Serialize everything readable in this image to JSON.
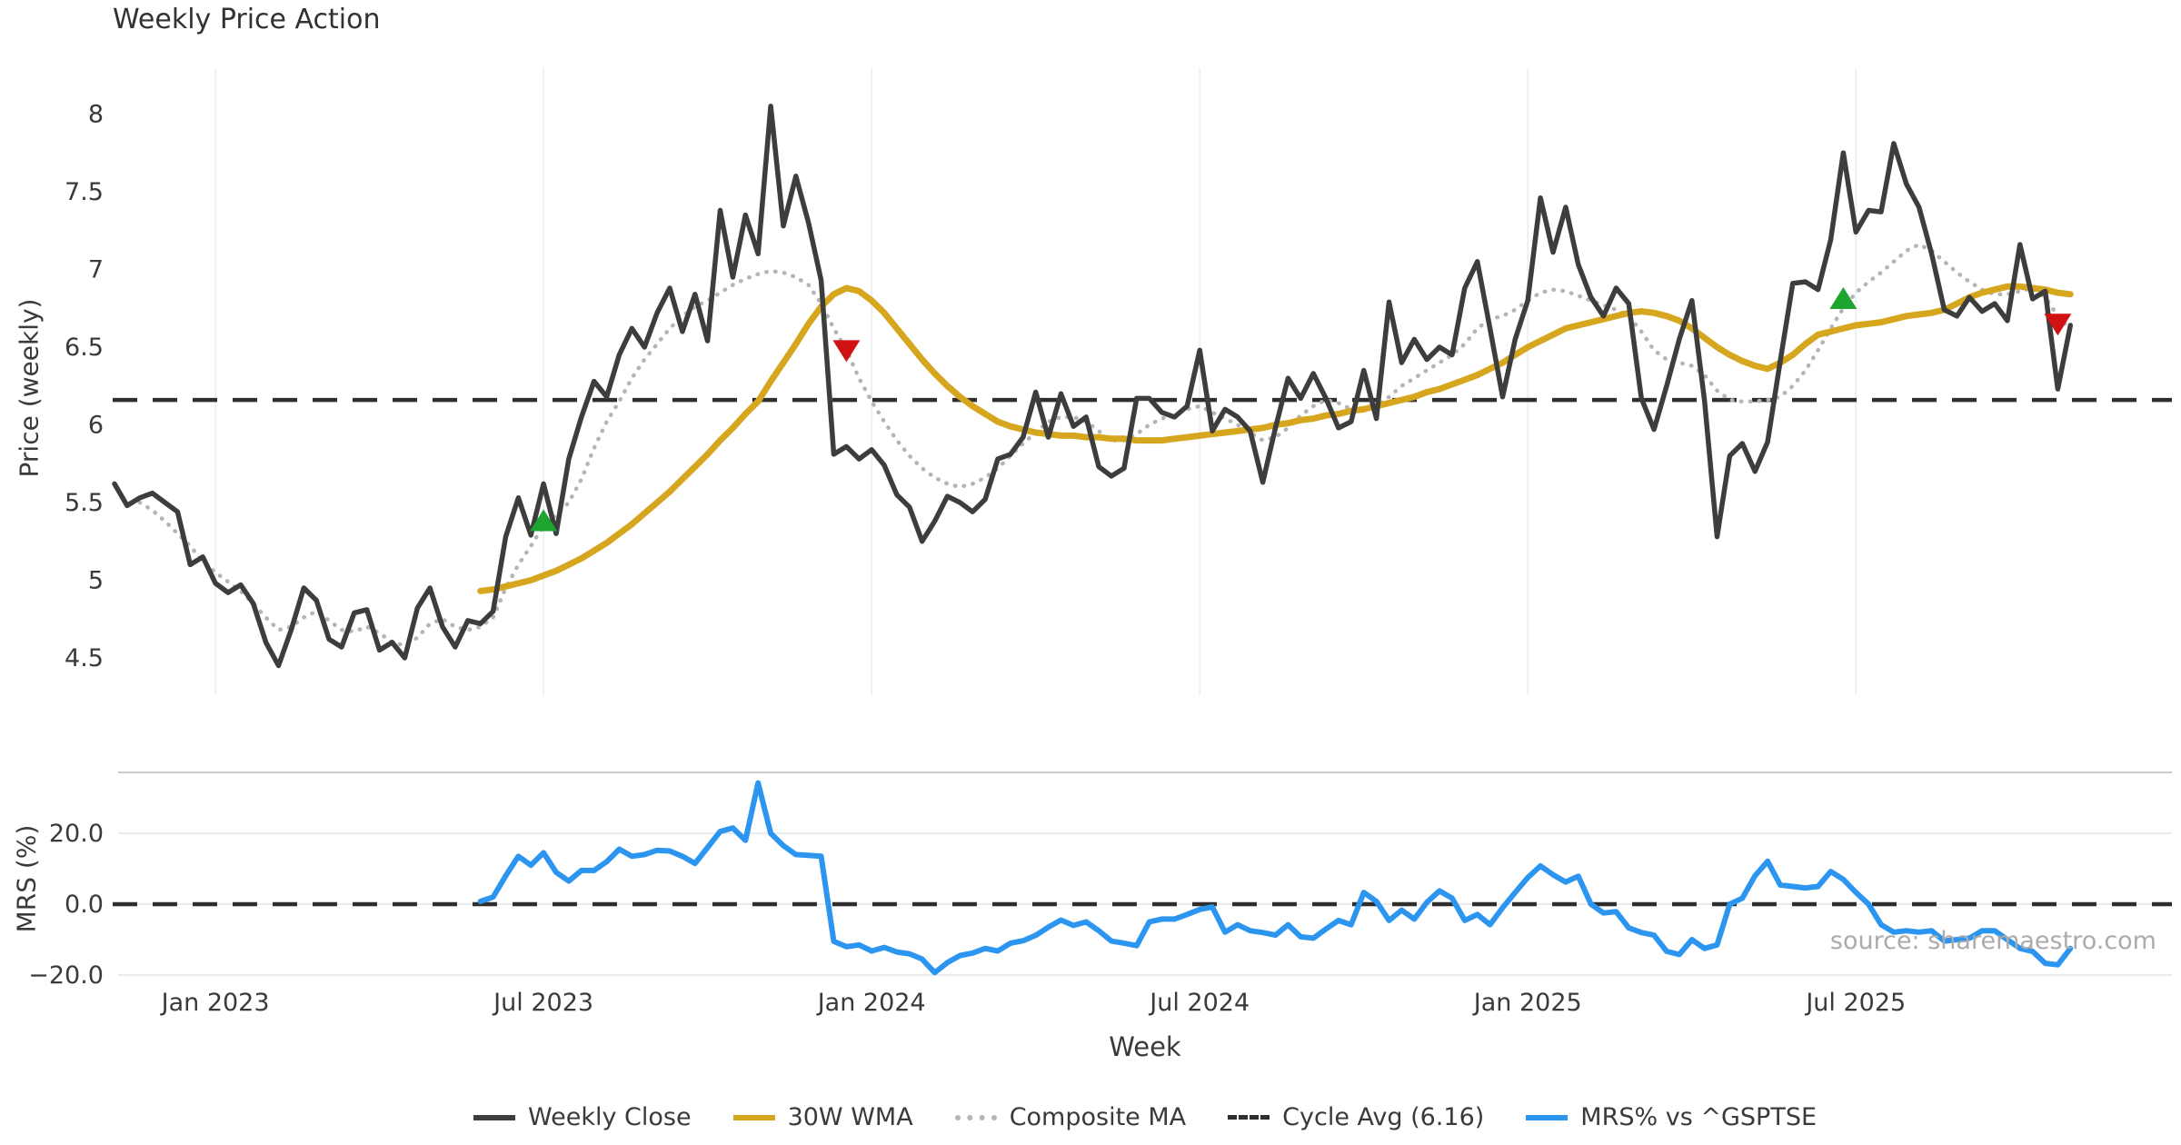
{
  "title": "Weekly Price Action",
  "source_note": "source: sharemaestro.com",
  "axis_labels": {
    "price": "Price (weekly)",
    "mrs": "MRS (%)",
    "x": "Week"
  },
  "legend": {
    "items": [
      {
        "label": "Weekly Close",
        "color": "#3d3d3d",
        "style": "solid"
      },
      {
        "label": "30W WMA",
        "color": "#d7a61f",
        "style": "solid"
      },
      {
        "label": "Composite MA",
        "color": "#b5b5b5",
        "style": "dotted"
      },
      {
        "label": "Cycle Avg (6.16)",
        "color": "#2e2e2e",
        "style": "dashed"
      },
      {
        "label": "MRS% vs ^GSPTSE",
        "color": "#2b95f0",
        "style": "solid"
      }
    ]
  },
  "colors": {
    "weekly_close": "#3d3d3d",
    "wma30": "#d7a61f",
    "composite_ma": "#b5b5b5",
    "cycle_avg": "#2e2e2e",
    "mrs": "#2b95f0",
    "buy_marker": "#1da52f",
    "sell_marker": "#d01215",
    "gridline": "#eef0f4",
    "mrs_gridline": "#e9ebf1",
    "panel_border": "#c9ccd2",
    "tick_text": "#3a3a3a",
    "source_text": "#ababab"
  },
  "chart_data": [
    {
      "panel": "price",
      "type": "line",
      "title": "Weekly Price Action",
      "ylabel": "Price (weekly)",
      "ylim": [
        4.26,
        8.3
      ],
      "yticks": [
        4.5,
        5,
        5.5,
        6,
        6.5,
        7,
        7.5,
        8
      ],
      "grid": "vertical-only",
      "x_unit": "week",
      "x_start_date": "2022-11-07",
      "x_total_weeks": 156,
      "x_ticks": [
        {
          "week": 8,
          "label": "Jan 2023"
        },
        {
          "week": 34,
          "label": "Jul 2023"
        },
        {
          "week": 60,
          "label": "Jan 2024"
        },
        {
          "week": 86,
          "label": "Jul 2024"
        },
        {
          "week": 112,
          "label": "Jan 2025"
        },
        {
          "week": 138,
          "label": "Jul 2025"
        }
      ],
      "cycle_avg": 6.16,
      "series": [
        {
          "name": "Weekly Close",
          "color": "#3d3d3d",
          "style": "solid",
          "width": 5.5,
          "start_week": 0,
          "values": [
            5.62,
            5.48,
            5.53,
            5.56,
            5.5,
            5.44,
            5.1,
            5.15,
            4.98,
            4.92,
            4.97,
            4.85,
            4.6,
            4.45,
            4.68,
            4.95,
            4.87,
            4.62,
            4.57,
            4.79,
            4.81,
            4.55,
            4.6,
            4.5,
            4.82,
            4.95,
            4.7,
            4.57,
            4.74,
            4.72,
            4.8,
            5.28,
            5.53,
            5.29,
            5.62,
            5.3,
            5.78,
            6.05,
            6.28,
            6.18,
            6.45,
            6.62,
            6.5,
            6.72,
            6.88,
            6.6,
            6.84,
            6.54,
            7.38,
            6.95,
            7.35,
            7.1,
            8.05,
            7.28,
            7.6,
            7.3,
            6.93,
            5.81,
            5.86,
            5.78,
            5.84,
            5.74,
            5.55,
            5.47,
            5.25,
            5.38,
            5.54,
            5.5,
            5.44,
            5.52,
            5.78,
            5.81,
            5.92,
            6.21,
            5.92,
            6.2,
            5.99,
            6.05,
            5.73,
            5.67,
            5.72,
            6.17,
            6.17,
            6.08,
            6.05,
            6.12,
            6.48,
            5.96,
            6.1,
            6.05,
            5.96,
            5.63,
            5.98,
            6.3,
            6.17,
            6.33,
            6.17,
            5.98,
            6.02,
            6.35,
            6.04,
            6.79,
            6.4,
            6.55,
            6.42,
            6.5,
            6.45,
            6.88,
            7.05,
            6.62,
            6.18,
            6.55,
            6.8,
            7.46,
            7.11,
            7.4,
            7.03,
            6.82,
            6.7,
            6.88,
            6.78,
            6.17,
            5.97,
            6.25,
            6.55,
            6.8,
            6.16,
            5.28,
            5.8,
            5.88,
            5.7,
            5.89,
            6.41,
            6.91,
            6.92,
            6.87,
            7.19,
            7.75,
            7.24,
            7.38,
            7.37,
            7.81,
            7.55,
            7.4,
            7.1,
            6.74,
            6.7,
            6.82,
            6.73,
            6.78,
            6.67,
            7.16,
            6.81,
            6.86,
            6.23,
            6.64
          ]
        },
        {
          "name": "30W WMA",
          "color": "#d7a61f",
          "style": "solid",
          "width": 7,
          "start_week": 29,
          "values": [
            4.93,
            4.94,
            4.96,
            4.98,
            5.0,
            5.03,
            5.06,
            5.1,
            5.14,
            5.19,
            5.24,
            5.3,
            5.36,
            5.43,
            5.5,
            5.57,
            5.65,
            5.73,
            5.81,
            5.9,
            5.98,
            6.07,
            6.15,
            6.28,
            6.4,
            6.52,
            6.65,
            6.76,
            6.84,
            6.88,
            6.86,
            6.8,
            6.72,
            6.62,
            6.52,
            6.42,
            6.33,
            6.25,
            6.18,
            6.12,
            6.07,
            6.02,
            5.99,
            5.97,
            5.95,
            5.94,
            5.93,
            5.93,
            5.92,
            5.92,
            5.91,
            5.91,
            5.9,
            5.9,
            5.9,
            5.91,
            5.92,
            5.93,
            5.94,
            5.95,
            5.96,
            5.97,
            5.98,
            6.0,
            6.01,
            6.03,
            6.04,
            6.06,
            6.07,
            6.09,
            6.1,
            6.12,
            6.14,
            6.16,
            6.18,
            6.21,
            6.23,
            6.26,
            6.29,
            6.32,
            6.36,
            6.4,
            6.45,
            6.5,
            6.54,
            6.58,
            6.62,
            6.64,
            6.66,
            6.68,
            6.7,
            6.72,
            6.73,
            6.72,
            6.7,
            6.67,
            6.62,
            6.56,
            6.5,
            6.45,
            6.41,
            6.38,
            6.36,
            6.4,
            6.45,
            6.52,
            6.58,
            6.6,
            6.62,
            6.64,
            6.65,
            6.66,
            6.68,
            6.7,
            6.71,
            6.72,
            6.74,
            6.78,
            6.82,
            6.85,
            6.87,
            6.89,
            6.89,
            6.88,
            6.87,
            6.85,
            6.84
          ]
        },
        {
          "name": "Composite MA",
          "color": "#b5b5b5",
          "style": "dotted",
          "width": 4.5,
          "start_week": 2,
          "values": [
            5.5,
            5.45,
            5.38,
            5.3,
            5.22,
            5.12,
            5.05,
            4.99,
            4.93,
            4.85,
            4.76,
            4.68,
            4.7,
            4.76,
            4.8,
            4.74,
            4.68,
            4.67,
            4.7,
            4.66,
            4.6,
            4.58,
            4.63,
            4.72,
            4.75,
            4.7,
            4.68,
            4.7,
            4.76,
            4.95,
            5.1,
            5.22,
            5.35,
            5.42,
            5.5,
            5.65,
            5.85,
            6.02,
            6.15,
            6.3,
            6.42,
            6.52,
            6.62,
            6.7,
            6.76,
            6.8,
            6.85,
            6.9,
            6.94,
            6.97,
            6.99,
            6.98,
            6.95,
            6.9,
            6.78,
            6.62,
            6.48,
            6.3,
            6.15,
            6.02,
            5.9,
            5.8,
            5.72,
            5.66,
            5.62,
            5.6,
            5.62,
            5.66,
            5.72,
            5.8,
            5.88,
            5.95,
            6.02,
            6.05,
            6.05,
            6.02,
            5.96,
            5.9,
            5.9,
            5.94,
            6.0,
            6.04,
            6.06,
            6.1,
            6.12,
            6.08,
            6.04,
            6.0,
            5.95,
            5.9,
            5.92,
            5.98,
            6.06,
            6.12,
            6.16,
            6.14,
            6.1,
            6.1,
            6.12,
            6.18,
            6.25,
            6.3,
            6.35,
            6.4,
            6.45,
            6.52,
            6.62,
            6.68,
            6.7,
            6.74,
            6.8,
            6.85,
            6.87,
            6.86,
            6.83,
            6.8,
            6.77,
            6.74,
            6.7,
            6.6,
            6.48,
            6.42,
            6.4,
            6.38,
            6.32,
            6.22,
            6.16,
            6.15,
            6.15,
            6.16,
            6.18,
            6.25,
            6.35,
            6.48,
            6.62,
            6.75,
            6.85,
            6.92,
            6.98,
            7.05,
            7.12,
            7.16,
            7.12,
            7.05,
            6.98,
            6.92,
            6.87,
            6.84,
            6.84,
            6.86,
            6.88,
            6.82,
            6.7,
            6.61
          ]
        },
        {
          "name": "Cycle Avg (6.16)",
          "color": "#2e2e2e",
          "style": "dashed",
          "width": 4.5,
          "constant": 6.16
        }
      ],
      "markers": {
        "buy": {
          "shape": "triangle-up",
          "color": "#1da52f",
          "points": [
            {
              "week": 34,
              "price": 5.38
            },
            {
              "week": 137,
              "price": 6.81
            }
          ]
        },
        "sell": {
          "shape": "triangle-down",
          "color": "#d01215",
          "points": [
            {
              "week": 58,
              "price": 6.48
            },
            {
              "week": 154,
              "price": 6.65
            }
          ]
        }
      }
    },
    {
      "panel": "mrs",
      "type": "line",
      "ylabel": "MRS (%)",
      "xlabel": "Week",
      "ylim": [
        -23,
        37.2
      ],
      "yticks": [
        {
          "value": 20,
          "label": "20.0"
        },
        {
          "value": 0,
          "label": "0.0"
        },
        {
          "value": -20,
          "label": "−20.0"
        }
      ],
      "zero_line_dashed": true,
      "series": [
        {
          "name": "MRS% vs ^GSPTSE",
          "color": "#2b95f0",
          "style": "solid",
          "width": 6,
          "start_week": 29,
          "values": [
            0.8,
            2.0,
            8.0,
            13.5,
            11.0,
            14.5,
            9.0,
            6.5,
            9.5,
            9.5,
            12.0,
            15.5,
            13.5,
            14.0,
            15.2,
            15.0,
            13.5,
            11.5,
            16.0,
            20.5,
            21.5,
            18.0,
            34.2,
            20.0,
            16.5,
            14.0,
            13.8,
            13.5,
            -10.5,
            -12.0,
            -11.5,
            -13.2,
            -12.2,
            -13.5,
            -14.0,
            -15.5,
            -19.3,
            -16.5,
            -14.5,
            -13.8,
            -12.5,
            -13.2,
            -11.0,
            -10.3,
            -8.8,
            -6.5,
            -4.5,
            -6.0,
            -5.0,
            -7.5,
            -10.4,
            -11.0,
            -11.7,
            -5.0,
            -4.2,
            -4.2,
            -2.9,
            -1.5,
            -0.8,
            -7.9,
            -5.8,
            -7.5,
            -8.0,
            -8.75,
            -5.8,
            -9.2,
            -9.6,
            -7.0,
            -4.6,
            -5.8,
            3.3,
            0.8,
            -4.6,
            -1.7,
            -4.2,
            0.5,
            3.75,
            1.7,
            -4.6,
            -2.9,
            -5.8,
            -1.0,
            3.3,
            7.5,
            10.8,
            8.3,
            6.25,
            7.9,
            0.0,
            -2.5,
            -2.1,
            -6.7,
            -8.0,
            -8.75,
            -13.3,
            -14.2,
            -10.0,
            -12.5,
            -11.5,
            0.0,
            1.7,
            8.0,
            12.1,
            5.4,
            5.0,
            4.6,
            5.0,
            9.2,
            7.0,
            3.3,
            0.0,
            -5.8,
            -7.9,
            -7.5,
            -7.9,
            -7.5,
            -10.4,
            -10.0,
            -9.6,
            -7.5,
            -7.5,
            -10.0,
            -12.5,
            -13.3,
            -16.7,
            -17.1,
            -12.5
          ]
        }
      ]
    }
  ]
}
